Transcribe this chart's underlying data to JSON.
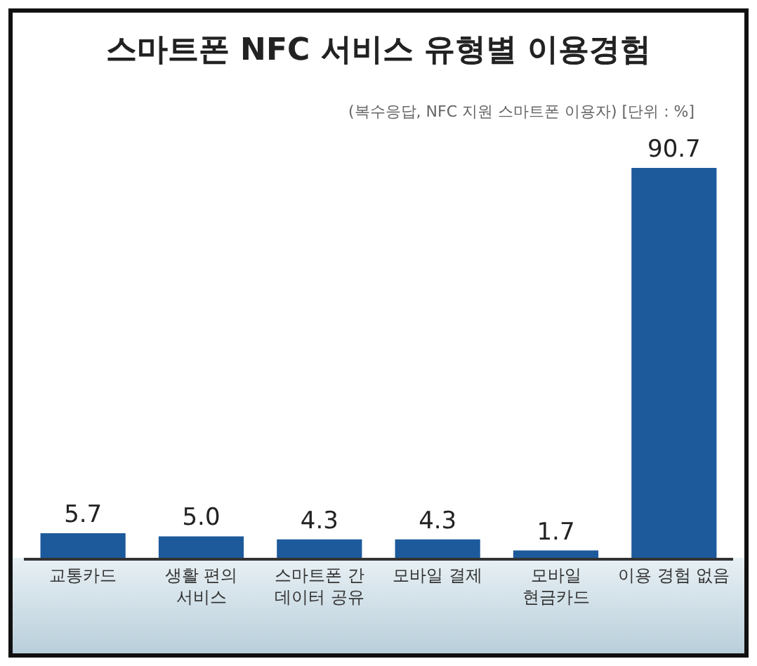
{
  "chart_data": {
    "type": "bar",
    "title": "스마트폰 NFC 서비스 유형별 이용경험",
    "subtitle": "(복수응답, NFC 지원 스마트폰 이용자) [단위 : %]",
    "categories": [
      "교통카드",
      "생활 편의\n서비스",
      "스마트폰 간\n데이터 공유",
      "모바일 결제",
      "모바일\n현금카드",
      "이용 경험 없음"
    ],
    "values": [
      5.7,
      5.0,
      4.3,
      4.3,
      1.7,
      90.7
    ],
    "value_labels": [
      "5.7",
      "5.0",
      "4.3",
      "4.3",
      "1.7",
      "90.7"
    ],
    "color": "#1d5a9b"
  }
}
